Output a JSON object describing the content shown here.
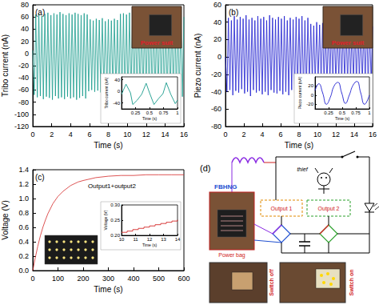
{
  "chart_data": [
    {
      "type": "line",
      "title": "(a)",
      "x_label": "Time (s)",
      "y_label": "Tribo current (nA)",
      "color": "#169a8b",
      "grid": false,
      "xlim": [
        0,
        16
      ],
      "xticks": [
        0,
        2,
        4,
        6,
        8,
        10,
        12,
        14,
        16
      ],
      "ylim": [
        -120,
        80
      ],
      "yticks": [
        -120,
        -100,
        -80,
        -60,
        -40,
        -20,
        0,
        20,
        40,
        60,
        80
      ],
      "x": [
        0,
        0.16,
        0.32,
        0.48,
        0.64,
        0.8,
        0.96,
        1.12,
        1.28,
        1.44,
        1.6,
        1.76,
        1.92,
        2.08,
        2.24,
        2.4,
        2.56,
        2.72,
        2.88,
        3.04,
        3.2,
        3.36,
        3.52,
        3.68,
        3.84,
        4,
        4.16,
        4.32,
        4.48,
        4.64,
        4.8,
        4.96,
        5.12,
        5.28,
        5.44,
        5.6,
        5.76,
        5.92,
        6.08,
        6.24,
        6.4,
        6.56,
        6.72,
        6.88,
        7.04,
        7.2,
        7.36,
        7.52,
        7.68,
        7.84,
        8,
        8.16,
        8.32,
        8.48,
        8.64,
        8.8,
        8.96,
        9.12,
        9.28,
        9.44,
        9.6,
        9.76,
        9.92,
        10.08,
        10.24,
        10.4,
        10.56,
        10.72,
        10.88,
        11.04,
        11.2,
        11.36,
        11.52,
        11.68,
        11.84,
        12,
        12.16,
        12.32,
        12.48,
        12.64,
        12.8,
        12.96,
        13.12,
        13.28,
        13.44,
        13.6,
        13.76,
        13.92,
        14.08,
        14.24,
        14.4,
        14.56,
        14.72,
        14.88,
        15.04,
        15.2,
        15.36,
        15.52,
        15.68,
        15.84,
        16
      ],
      "values": [
        5,
        -68,
        64,
        -72,
        66,
        -70,
        62,
        -75,
        65,
        -71,
        67,
        -73,
        63,
        -76,
        66,
        -70,
        64,
        -74,
        68,
        -72,
        65,
        -75,
        63,
        -71,
        66,
        -74,
        64,
        -72,
        67,
        -76,
        65,
        -73,
        63,
        -70,
        66,
        -74,
        64,
        -62,
        56,
        -60,
        54,
        -63,
        57,
        -61,
        55,
        -64,
        58,
        -60,
        53,
        -62,
        56,
        -65,
        54,
        -61,
        57,
        -63,
        55,
        -72,
        65,
        -75,
        66,
        -73,
        64,
        -76,
        67,
        -71,
        65,
        -74,
        63,
        -77,
        66,
        -72,
        64,
        -75,
        67,
        -70,
        65,
        -74,
        63,
        -76,
        66,
        -72,
        64,
        -75,
        68,
        -71,
        65,
        -74,
        63,
        -76,
        66,
        -73,
        64,
        -75,
        67,
        -72,
        65,
        -74,
        63,
        -71,
        60
      ],
      "annotations": [
        "Power suit"
      ],
      "inset": {
        "type": "line",
        "x_label": "Time (s)",
        "y_label": "Tribo current (nA)",
        "color": "#169a8b",
        "xlim": [
          0,
          1
        ],
        "xticks": [
          0.25,
          0.5,
          0.75,
          1
        ],
        "ylim": [
          -60,
          50
        ],
        "yticks": [
          -40,
          0,
          40
        ],
        "x": [
          0,
          0.08,
          0.16,
          0.2,
          0.28,
          0.36,
          0.44,
          0.5,
          0.58,
          0.66,
          0.74,
          0.8,
          0.88,
          0.96,
          1
        ],
        "values": [
          -10,
          25,
          -5,
          -45,
          -30,
          -10,
          28,
          -5,
          -45,
          -25,
          -8,
          30,
          -10,
          -42,
          -30
        ]
      }
    },
    {
      "type": "line",
      "title": "(b)",
      "x_label": "Time (s)",
      "y_label": "Piezo current (nA)",
      "color": "#1c1ccf",
      "grid": false,
      "xlim": [
        0,
        16
      ],
      "xticks": [
        0,
        2,
        4,
        6,
        8,
        10,
        12,
        14,
        16
      ],
      "ylim": [
        -80,
        60
      ],
      "yticks": [
        -80,
        -60,
        -40,
        -20,
        0,
        20,
        40,
        60
      ],
      "x": [
        0,
        0.16,
        0.32,
        0.48,
        0.64,
        0.8,
        0.96,
        1.12,
        1.28,
        1.44,
        1.6,
        1.76,
        1.92,
        2.08,
        2.24,
        2.4,
        2.56,
        2.72,
        2.88,
        3.04,
        3.2,
        3.36,
        3.52,
        3.68,
        3.84,
        4,
        4.16,
        4.32,
        4.48,
        4.64,
        4.8,
        4.96,
        5.12,
        5.28,
        5.44,
        5.6,
        5.76,
        5.92,
        6.08,
        6.24,
        6.4,
        6.56,
        6.72,
        6.88,
        7.04,
        7.2,
        7.36,
        7.52,
        7.68,
        7.84,
        8,
        8.16,
        8.32,
        8.48,
        8.64,
        8.8,
        8.96,
        9.12,
        9.28,
        9.44,
        9.6,
        9.76,
        9.92,
        10.08,
        10.24,
        10.4,
        10.56,
        10.72,
        10.88,
        11.04,
        11.2,
        11.36,
        11.52,
        11.68,
        11.84,
        12,
        12.16,
        12.32,
        12.48,
        12.64,
        12.8,
        12.96,
        13.12,
        13.28,
        13.44,
        13.6,
        13.76,
        13.92,
        14.08,
        14.24,
        14.4,
        14.56,
        14.72,
        14.88,
        15.04,
        15.2,
        15.36,
        15.52,
        15.68,
        15.84,
        16
      ],
      "values": [
        0,
        -40,
        45,
        -38,
        42,
        -44,
        47,
        -39,
        43,
        -41,
        46,
        -37,
        44,
        -42,
        48,
        -40,
        43,
        -45,
        45,
        -38,
        42,
        -41,
        47,
        -39,
        44,
        -43,
        46,
        -40,
        42,
        -44,
        48,
        -38,
        45,
        -41,
        43,
        -42,
        46,
        -39,
        44,
        -43,
        47,
        -40,
        42,
        -44,
        45,
        -38,
        43,
        -41,
        46,
        -42,
        44,
        -39,
        47,
        -43,
        42,
        -40,
        45,
        -30,
        38,
        -28,
        36,
        -32,
        40,
        -27,
        37,
        -31,
        39,
        -29,
        35,
        -33,
        38,
        -28,
        36,
        -30,
        40,
        -32,
        37,
        -27,
        39,
        -31,
        36,
        -29,
        38,
        -33,
        40,
        -28,
        35,
        -30,
        39,
        -32,
        37,
        -27,
        38,
        -31,
        36,
        -29,
        40,
        -33,
        37,
        -30,
        35
      ],
      "annotations": [
        "Power suit"
      ],
      "inset": {
        "type": "line",
        "x_label": "Time (s)",
        "y_label": "Piezo current (nA)",
        "color": "#1c1ccf",
        "line_style": "smooth",
        "xlim": [
          0,
          1
        ],
        "xticks": [
          0.25,
          0.5,
          0.75,
          1
        ],
        "ylim": [
          -30,
          40
        ],
        "yticks": [
          -20,
          0,
          20
        ],
        "x": [
          0,
          0.07,
          0.14,
          0.21,
          0.28,
          0.35,
          0.42,
          0.49,
          0.56,
          0.63,
          0.7,
          0.77,
          0.84,
          0.91,
          1
        ],
        "values": [
          10,
          25,
          5,
          -20,
          -5,
          20,
          28,
          5,
          -18,
          0,
          22,
          30,
          5,
          -20,
          0
        ]
      }
    },
    {
      "type": "line",
      "title": "(c)",
      "x_label": "Time (s)",
      "y_label": "Voltage (V)",
      "color": "#d42a2a",
      "grid": false,
      "xlim": [
        0,
        600
      ],
      "xticks": [
        0,
        100,
        200,
        300,
        400,
        500,
        600
      ],
      "ylim": [
        0,
        1.4
      ],
      "yticks": [
        {
          "value": 0,
          "label": "0.0"
        },
        0.2,
        0.4,
        0.6,
        0.8,
        {
          "value": 1,
          "label": "1.0"
        },
        1.2,
        1.4
      ],
      "x": [
        0,
        10,
        20,
        30,
        40,
        50,
        60,
        80,
        100,
        120,
        150,
        180,
        200,
        250,
        300,
        350,
        400,
        450,
        500,
        550,
        600
      ],
      "values": [
        0,
        0.18,
        0.34,
        0.48,
        0.6,
        0.7,
        0.79,
        0.93,
        1.03,
        1.1,
        1.18,
        1.23,
        1.25,
        1.29,
        1.31,
        1.32,
        1.32,
        1.33,
        1.33,
        1.33,
        1.33
      ],
      "annotations": [
        "Output1+output2"
      ],
      "inset": {
        "type": "line",
        "x_label": "Time (s)",
        "y_label": "Voltage (V)",
        "color": "#d42a2a",
        "line_style": "step",
        "xlim": [
          10,
          14
        ],
        "xticks": [
          10,
          11,
          12,
          13,
          14
        ],
        "ylim": [
          0.2,
          0.3
        ],
        "yticks": [
          {
            "value": 0.2,
            "label": "0.20"
          },
          0.25,
          {
            "value": 0.3,
            "label": "0.30"
          }
        ],
        "x": [
          10,
          10.4,
          10.8,
          11.2,
          11.6,
          12,
          12.4,
          12.8,
          13.2,
          13.6,
          14
        ],
        "values": [
          0.21,
          0.214,
          0.219,
          0.223,
          0.227,
          0.231,
          0.235,
          0.239,
          0.243,
          0.247,
          0.251
        ]
      }
    }
  ],
  "diagram": {
    "label": "(d)",
    "thief": "thief",
    "generator": "FBHNG",
    "bag": "Power bag",
    "outputs": [
      "Output 1",
      "Output 2"
    ],
    "photos": [
      "Switch off",
      "Switch on"
    ]
  }
}
